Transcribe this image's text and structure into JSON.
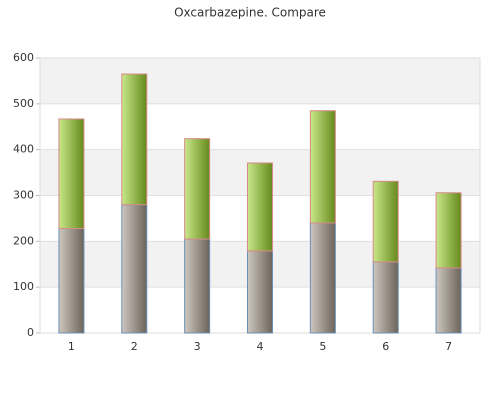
{
  "chart_data": {
    "type": "bar",
    "stacked": true,
    "title": "Oxcarbazepine. Compare",
    "categories": [
      "1",
      "2",
      "3",
      "4",
      "5",
      "6",
      "7"
    ],
    "series": [
      {
        "color": "#a69a8a",
        "values": [
          228,
          280,
          205,
          179,
          240,
          155,
          142
        ]
      },
      {
        "color": "#9bd42a",
        "values": [
          239,
          285,
          219,
          192,
          245,
          176,
          164
        ]
      }
    ],
    "ylim": [
      0,
      600
    ],
    "yticks": [
      0,
      100,
      200,
      300,
      400,
      500,
      600
    ],
    "grid": true
  }
}
